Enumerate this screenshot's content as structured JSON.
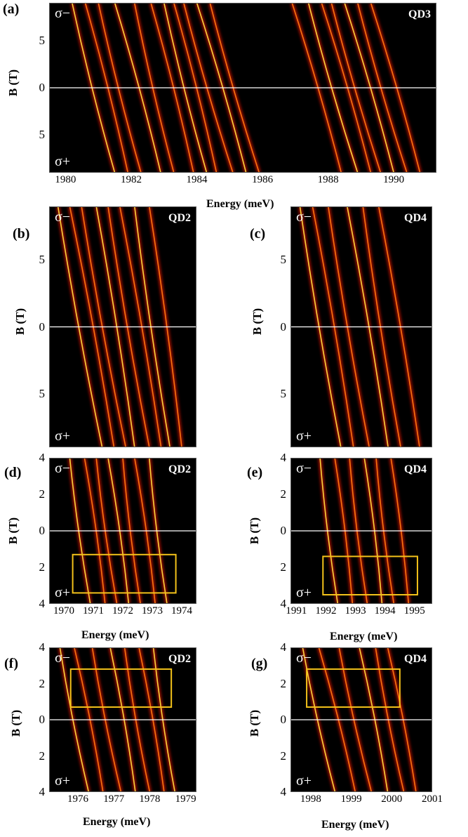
{
  "chart_data": [
    {
      "panel": "(a)",
      "type": "heatmap",
      "qd_label": "QD3",
      "sigma_top": "σ−",
      "sigma_bottom": "σ+",
      "xlabel": "Energy (meV)",
      "ylabel": "B (T)",
      "xticks": [
        "1980",
        "1982",
        "1984",
        "1986",
        "1988",
        "1990"
      ],
      "xtick_values": [
        1980,
        1982,
        1984,
        1986,
        1988,
        1990
      ],
      "yticks": [
        "5",
        "0",
        "5"
      ],
      "ytick_values": [
        5,
        0,
        -5
      ],
      "xlim": [
        1979.5,
        1991.3
      ],
      "ylim": [
        -9,
        9
      ],
      "zero_line": 0,
      "colormap": [
        "#000000",
        "#7a0000",
        "#e02000",
        "#ff8a00",
        "#ffff50"
      ],
      "lines": [
        {
          "x_top": 1980.2,
          "x_bottom": 1981.5
        },
        {
          "x_top": 1980.6,
          "x_bottom": 1981.9
        },
        {
          "x_top": 1981.0,
          "x_bottom": 1982.3
        },
        {
          "x_top": 1981.5,
          "x_bottom": 1982.9
        },
        {
          "x_top": 1982.1,
          "x_bottom": 1983.3
        },
        {
          "x_top": 1982.6,
          "x_bottom": 1983.9
        },
        {
          "x_top": 1983.0,
          "x_bottom": 1984.3
        },
        {
          "x_top": 1983.3,
          "x_bottom": 1984.6
        },
        {
          "x_top": 1983.6,
          "x_bottom": 1985.1
        },
        {
          "x_top": 1984.0,
          "x_bottom": 1985.5
        },
        {
          "x_top": 1984.4,
          "x_bottom": 1985.9
        },
        {
          "x_top": 1986.9,
          "x_bottom": 1988.4
        },
        {
          "x_top": 1987.4,
          "x_bottom": 1988.9
        },
        {
          "x_top": 1987.8,
          "x_bottom": 1989.3
        },
        {
          "x_top": 1988.1,
          "x_bottom": 1989.6
        },
        {
          "x_top": 1988.5,
          "x_bottom": 1990.0
        },
        {
          "x_top": 1988.9,
          "x_bottom": 1990.4
        },
        {
          "x_top": 1989.3,
          "x_bottom": 1990.8
        }
      ]
    },
    {
      "panel": "(b)",
      "type": "heatmap",
      "qd_label": "QD2",
      "sigma_top": "σ−",
      "sigma_bottom": "σ+",
      "xlabel": "",
      "ylabel": "B (T)",
      "xticks": [],
      "yticks": [
        "5",
        "0",
        "5"
      ],
      "ytick_values": [
        5,
        0,
        -5
      ],
      "xlim": [
        1969.5,
        1974.5
      ],
      "ylim": [
        -9,
        9
      ],
      "zero_line": 0,
      "lines": [
        {
          "x_top": 1969.8,
          "x_bottom": 1971.3
        },
        {
          "x_top": 1970.2,
          "x_bottom": 1971.7
        },
        {
          "x_top": 1970.6,
          "x_bottom": 1972.1
        },
        {
          "x_top": 1971.1,
          "x_bottom": 1972.4
        },
        {
          "x_top": 1971.5,
          "x_bottom": 1972.9
        },
        {
          "x_top": 1971.9,
          "x_bottom": 1973.3
        },
        {
          "x_top": 1972.4,
          "x_bottom": 1973.6
        },
        {
          "x_top": 1972.9,
          "x_bottom": 1974.0
        }
      ]
    },
    {
      "panel": "(c)",
      "type": "heatmap",
      "qd_label": "QD4",
      "sigma_top": "σ−",
      "sigma_bottom": "σ+",
      "xlabel": "",
      "ylabel": "B (T)",
      "xticks": [],
      "yticks": [
        "5",
        "0",
        "5"
      ],
      "ytick_values": [
        5,
        0,
        -5
      ],
      "xlim": [
        1991.0,
        1995.5
      ],
      "ylim": [
        -9,
        9
      ],
      "zero_line": 0,
      "lines": [
        {
          "x_top": 1991.3,
          "x_bottom": 1992.6
        },
        {
          "x_top": 1991.7,
          "x_bottom": 1993.0
        },
        {
          "x_top": 1992.2,
          "x_bottom": 1993.5
        },
        {
          "x_top": 1992.8,
          "x_bottom": 1994.1
        },
        {
          "x_top": 1993.3,
          "x_bottom": 1994.5
        },
        {
          "x_top": 1993.8,
          "x_bottom": 1995.1
        }
      ]
    },
    {
      "panel": "(d)",
      "type": "heatmap",
      "qd_label": "QD2",
      "sigma_top": "σ−",
      "sigma_bottom": "σ+",
      "xlabel": "Energy (meV)",
      "ylabel": "B (T)",
      "xticks": [
        "1970",
        "1971",
        "1972",
        "1973",
        "1974"
      ],
      "xtick_values": [
        1970,
        1971,
        1972,
        1973,
        1974
      ],
      "yticks": [
        "4",
        "2",
        "0",
        "2",
        "4"
      ],
      "ytick_values": [
        4,
        2,
        0,
        -2,
        -4
      ],
      "xlim": [
        1969.5,
        1974.5
      ],
      "ylim": [
        -4,
        4
      ],
      "zero_line": 0,
      "highlight_box": {
        "x": [
          1970.3,
          1973.8
        ],
        "y": [
          -3.4,
          -1.3
        ]
      },
      "lines": [
        {
          "x_top": 1970.2,
          "x_bottom": 1970.9
        },
        {
          "x_top": 1970.7,
          "x_bottom": 1971.4
        },
        {
          "x_top": 1971.1,
          "x_bottom": 1971.8
        },
        {
          "x_top": 1971.5,
          "x_bottom": 1972.2
        },
        {
          "x_top": 1972.0,
          "x_bottom": 1972.6
        },
        {
          "x_top": 1972.4,
          "x_bottom": 1973.1
        },
        {
          "x_top": 1972.9,
          "x_bottom": 1973.5
        }
      ]
    },
    {
      "panel": "(e)",
      "type": "heatmap",
      "qd_label": "QD4",
      "sigma_top": "σ−",
      "sigma_bottom": "σ+",
      "xlabel": "Energy (meV)",
      "ylabel": "B (T)",
      "xticks": [
        "1991",
        "1992",
        "1993",
        "1994",
        "1995"
      ],
      "xtick_values": [
        1991,
        1992,
        1993,
        1994,
        1995
      ],
      "yticks": [
        "4",
        "2",
        "0",
        "2",
        "4"
      ],
      "ytick_values": [
        4,
        2,
        0,
        -2,
        -4
      ],
      "xlim": [
        1990.8,
        1995.6
      ],
      "ylim": [
        -4,
        4
      ],
      "zero_line": 0,
      "highlight_box": {
        "x": [
          1991.9,
          1995.1
        ],
        "y": [
          -3.5,
          -1.4
        ]
      },
      "lines": [
        {
          "x_top": 1991.8,
          "x_bottom": 1992.4
        },
        {
          "x_top": 1992.3,
          "x_bottom": 1992.9
        },
        {
          "x_top": 1992.8,
          "x_bottom": 1993.4
        },
        {
          "x_top": 1993.3,
          "x_bottom": 1993.9
        },
        {
          "x_top": 1993.7,
          "x_bottom": 1994.3
        },
        {
          "x_top": 1994.2,
          "x_bottom": 1994.8
        }
      ]
    },
    {
      "panel": "(f)",
      "type": "heatmap",
      "qd_label": "QD2",
      "sigma_top": "σ−",
      "sigma_bottom": "σ+",
      "xlabel": "Energy (meV)",
      "ylabel": "B (T)",
      "xticks": [
        "1976",
        "1977",
        "1978",
        "1979"
      ],
      "xtick_values": [
        1976,
        1977,
        1978,
        1979
      ],
      "yticks": [
        "4",
        "2",
        "0",
        "2",
        "4"
      ],
      "ytick_values": [
        4,
        2,
        0,
        -2,
        -4
      ],
      "xlim": [
        1975.2,
        1979.3
      ],
      "ylim": [
        -4,
        4
      ],
      "zero_line": 0,
      "highlight_box": {
        "x": [
          1975.8,
          1978.6
        ],
        "y": [
          0.7,
          2.8
        ]
      },
      "lines": [
        {
          "x_top": 1975.5,
          "x_bottom": 1976.3
        },
        {
          "x_top": 1975.9,
          "x_bottom": 1976.7
        },
        {
          "x_top": 1976.4,
          "x_bottom": 1977.2
        },
        {
          "x_top": 1976.9,
          "x_bottom": 1977.6
        },
        {
          "x_top": 1977.3,
          "x_bottom": 1978.0
        },
        {
          "x_top": 1977.7,
          "x_bottom": 1978.4
        },
        {
          "x_top": 1978.1,
          "x_bottom": 1978.7
        }
      ]
    },
    {
      "panel": "(g)",
      "type": "heatmap",
      "qd_label": "QD4",
      "sigma_top": "σ−",
      "sigma_bottom": "σ+",
      "xlabel": "Energy (meV)",
      "ylabel": "B (T)",
      "xticks": [
        "1998",
        "1999",
        "2000",
        "2001"
      ],
      "xtick_values": [
        1998,
        1999,
        2000,
        2001
      ],
      "yticks": [
        "4",
        "2",
        "0",
        "2",
        "4"
      ],
      "ytick_values": [
        4,
        2,
        0,
        -2,
        -4
      ],
      "xlim": [
        1997.5,
        2001.0
      ],
      "ylim": [
        -4,
        4
      ],
      "zero_line": 0,
      "highlight_box": {
        "x": [
          1997.9,
          2000.2
        ],
        "y": [
          0.7,
          2.8
        ]
      },
      "lines": [
        {
          "x_top": 1997.8,
          "x_bottom": 1998.6
        },
        {
          "x_top": 1998.2,
          "x_bottom": 1999.1
        },
        {
          "x_top": 1998.7,
          "x_bottom": 1999.5
        },
        {
          "x_top": 1999.2,
          "x_bottom": 1999.9
        },
        {
          "x_top": 1999.6,
          "x_bottom": 2000.3
        },
        {
          "x_top": 1999.9,
          "x_bottom": 2000.6
        }
      ]
    }
  ]
}
